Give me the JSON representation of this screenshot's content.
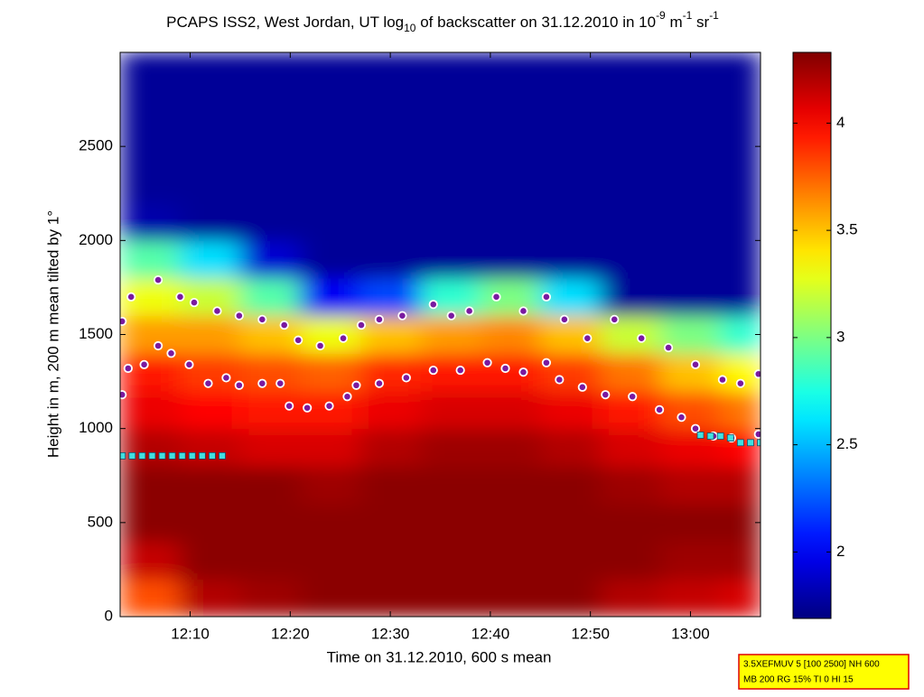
{
  "chart_data": {
    "type": "heatmap",
    "title": [
      "PCAPS ISS2, West Jordan, UT log",
      "10",
      " of backscatter on 31.12.2010 in 10",
      "-9",
      " m",
      "-1",
      " sr",
      "-1"
    ],
    "x_label": "Time on 31.12.2010, 600 s mean",
    "y_label": "Height in m, 200 m mean tilted by 1°",
    "annotation": [
      "3.5XEFMUV 5 [100 2500] NH 600",
      "MB 200 RG 15% TI 0 HI 15"
    ],
    "xlim": [
      723,
      787
    ],
    "xticks": [
      {
        "value": 730,
        "label": "12:10"
      },
      {
        "value": 740,
        "label": "12:20"
      },
      {
        "value": 750,
        "label": "12:30"
      },
      {
        "value": 760,
        "label": "12:40"
      },
      {
        "value": 770,
        "label": "12:50"
      },
      {
        "value": 780,
        "label": "13:00"
      }
    ],
    "ylim": [
      0,
      3000
    ],
    "yticks": [
      0,
      500,
      1000,
      1500,
      2000,
      2500
    ],
    "colormap": "jet",
    "clim": [
      1.69,
      4.33
    ],
    "cticks": [
      2,
      2.5,
      3,
      3.5,
      4
    ],
    "x": [
      726,
      732,
      738,
      744,
      750,
      756,
      762,
      768,
      774,
      780,
      786
    ],
    "y": [
      100,
      300,
      500,
      700,
      900,
      1100,
      1300,
      1500,
      1700,
      1900,
      2100,
      2300,
      2500,
      2700,
      2900
    ],
    "z": [
      [
        3.8,
        4.2,
        4.25,
        4.3,
        4.3,
        4.3,
        4.3,
        4.3,
        4.2,
        4.15,
        4.1
      ],
      [
        4.15,
        4.3,
        4.3,
        4.3,
        4.3,
        4.3,
        4.3,
        4.3,
        4.3,
        4.25,
        4.25
      ],
      [
        4.3,
        4.3,
        4.3,
        4.3,
        4.3,
        4.3,
        4.3,
        4.3,
        4.3,
        4.3,
        4.3
      ],
      [
        4.3,
        4.3,
        4.3,
        4.25,
        4.3,
        4.3,
        4.3,
        4.3,
        4.25,
        4.2,
        4.2
      ],
      [
        4.2,
        4.15,
        4.1,
        4.1,
        4.2,
        4.25,
        4.25,
        4.2,
        4.1,
        4.05,
        4.0
      ],
      [
        4.05,
        4.0,
        3.95,
        3.95,
        4.05,
        4.1,
        4.1,
        4.05,
        3.95,
        3.8,
        3.7
      ],
      [
        3.95,
        3.85,
        3.8,
        3.75,
        3.9,
        3.95,
        3.95,
        3.85,
        3.7,
        3.5,
        3.35
      ],
      [
        3.6,
        3.6,
        3.5,
        3.3,
        3.5,
        3.6,
        3.65,
        3.5,
        3.2,
        3.0,
        2.8
      ],
      [
        3.3,
        3.2,
        2.9,
        2.0,
        2.2,
        2.8,
        3.0,
        2.6,
        1.75,
        1.75,
        1.75
      ],
      [
        2.9,
        2.6,
        1.9,
        1.75,
        1.75,
        1.75,
        1.75,
        1.75,
        1.75,
        1.75,
        1.75
      ],
      [
        1.8,
        1.75,
        1.75,
        1.75,
        1.75,
        1.75,
        1.75,
        1.75,
        1.75,
        1.75,
        1.75
      ],
      [
        1.75,
        1.75,
        1.75,
        1.75,
        1.75,
        1.75,
        1.75,
        1.75,
        1.75,
        1.75,
        1.75
      ],
      [
        1.75,
        1.75,
        1.75,
        1.75,
        1.75,
        1.75,
        1.75,
        1.75,
        1.75,
        1.75,
        1.75
      ],
      [
        1.75,
        1.75,
        1.75,
        1.75,
        1.75,
        1.75,
        1.75,
        1.75,
        1.75,
        1.75,
        1.75
      ],
      [
        1.75,
        1.75,
        1.75,
        1.75,
        1.75,
        1.75,
        1.75,
        1.75,
        1.75,
        1.75,
        1.75
      ]
    ],
    "series": [
      {
        "marker": "circle",
        "color": "#7a1aa0",
        "x": [
          723.2,
          724.1,
          726.8,
          729.0,
          730.4,
          732.7,
          734.9,
          737.2,
          739.4,
          740.8,
          743.0,
          745.3,
          747.1,
          748.9,
          751.2,
          754.3,
          756.1,
          757.9,
          760.6,
          763.3,
          765.6,
          767.4,
          769.7,
          772.4,
          775.1,
          777.8,
          780.5,
          783.2,
          785.0,
          786.8
        ],
        "values": [
          1570,
          1700,
          1790,
          1700,
          1670,
          1625,
          1600,
          1580,
          1550,
          1470,
          1440,
          1480,
          1550,
          1580,
          1600,
          1660,
          1600,
          1625,
          1700,
          1625,
          1700,
          1580,
          1480,
          1580,
          1480,
          1430,
          1340,
          1260,
          1240,
          1290
        ]
      },
      {
        "marker": "circle",
        "color": "#7a1aa0",
        "x": [
          723.2,
          723.8,
          725.4,
          726.8,
          728.1,
          729.9,
          731.8,
          733.6,
          734.9,
          737.2,
          739.0,
          739.9,
          741.7,
          743.9,
          745.7,
          746.6,
          748.9,
          751.6,
          754.3,
          757.0,
          759.7,
          761.5,
          763.3,
          765.6,
          766.9,
          769.2,
          771.5,
          774.2,
          776.9,
          779.1,
          780.5,
          782.3,
          784.1,
          786.8
        ],
        "values": [
          1180,
          1320,
          1340,
          1440,
          1400,
          1340,
          1240,
          1270,
          1230,
          1240,
          1240,
          1120,
          1110,
          1120,
          1170,
          1230,
          1240,
          1270,
          1310,
          1310,
          1350,
          1320,
          1300,
          1350,
          1260,
          1220,
          1180,
          1170,
          1100,
          1060,
          1000,
          960,
          950,
          970
        ]
      },
      {
        "marker": "square",
        "color": "#40e0e0",
        "x": [
          723.2,
          724.2,
          725.2,
          726.2,
          727.2,
          728.2,
          729.2,
          730.2,
          731.2,
          732.2,
          733.2,
          781.0,
          782.0,
          783.0,
          784.0,
          785.0,
          786.0,
          787.0
        ],
        "values": [
          855,
          855,
          855,
          855,
          855,
          855,
          855,
          855,
          855,
          855,
          855,
          965,
          960,
          960,
          950,
          925,
          925,
          925
        ]
      }
    ]
  }
}
